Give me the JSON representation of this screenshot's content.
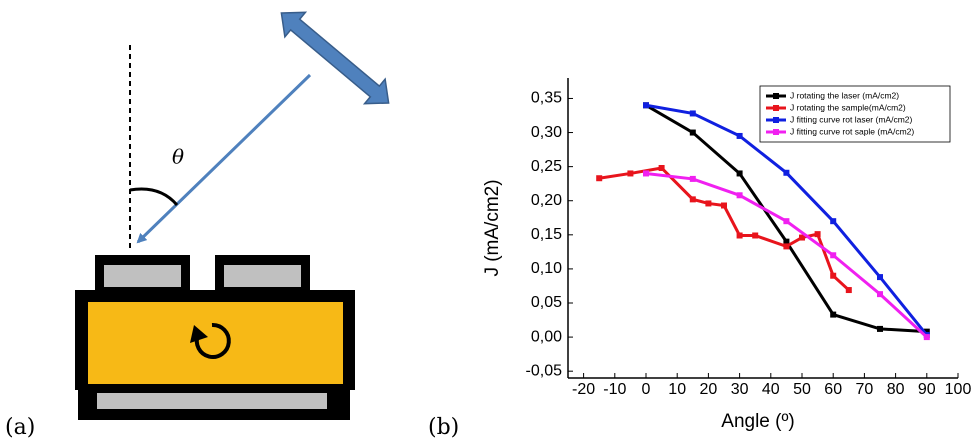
{
  "panel_labels": [
    "(a)",
    "(b)"
  ],
  "diagram": {
    "angle_symbol": "θ"
  },
  "chart_data": {
    "type": "line",
    "x_label": "Angle (º)",
    "y_label": "J (mA/cm2)",
    "xlim": [
      -25,
      100
    ],
    "xticks": [
      -20,
      -10,
      0,
      10,
      20,
      30,
      40,
      50,
      60,
      70,
      80,
      90,
      100
    ],
    "ylim": [
      -0.06,
      0.38
    ],
    "yticks": [
      {
        "value": -0.05,
        "label": "-0,05"
      },
      {
        "value": 0,
        "label": "0,00"
      },
      {
        "value": 0.05,
        "label": "0,05"
      },
      {
        "value": 0.1,
        "label": "0,10"
      },
      {
        "value": 0.15,
        "label": "0,15"
      },
      {
        "value": 0.2,
        "label": "0,20"
      },
      {
        "value": 0.25,
        "label": "0,25"
      },
      {
        "value": 0.3,
        "label": "0,30"
      },
      {
        "value": 0.35,
        "label": "0,35"
      }
    ],
    "legend": "upper right",
    "series": [
      {
        "name": "J rotating the laser (mA/cm2)",
        "color": "#000000",
        "x": [
          0,
          15,
          30,
          45,
          60,
          75,
          90
        ],
        "values": [
          0.34,
          0.3,
          0.24,
          0.14,
          0.033,
          0.012,
          0.008
        ]
      },
      {
        "name": "J rotating the sample(mA/cm2)",
        "color": "#e8141c",
        "x": [
          -15,
          -5,
          5,
          15,
          20,
          25,
          30,
          35,
          45,
          50,
          55,
          60,
          65
        ],
        "values": [
          0.233,
          0.24,
          0.248,
          0.202,
          0.196,
          0.193,
          0.149,
          0.149,
          0.133,
          0.146,
          0.151,
          0.09,
          0.069
        ]
      },
      {
        "name": "J fitting curve rot laser (mA/cm2)",
        "color": "#1020e0",
        "x": [
          0,
          15,
          30,
          45,
          60,
          75,
          90
        ],
        "values": [
          0.34,
          0.328,
          0.295,
          0.241,
          0.17,
          0.088,
          0.003
        ]
      },
      {
        "name": "J fitting curve rot saple (mA/cm2)",
        "color": "#f020f0",
        "x": [
          0,
          15,
          30,
          45,
          60,
          75,
          90
        ],
        "values": [
          0.24,
          0.232,
          0.208,
          0.17,
          0.12,
          0.063,
          0
        ]
      }
    ]
  }
}
